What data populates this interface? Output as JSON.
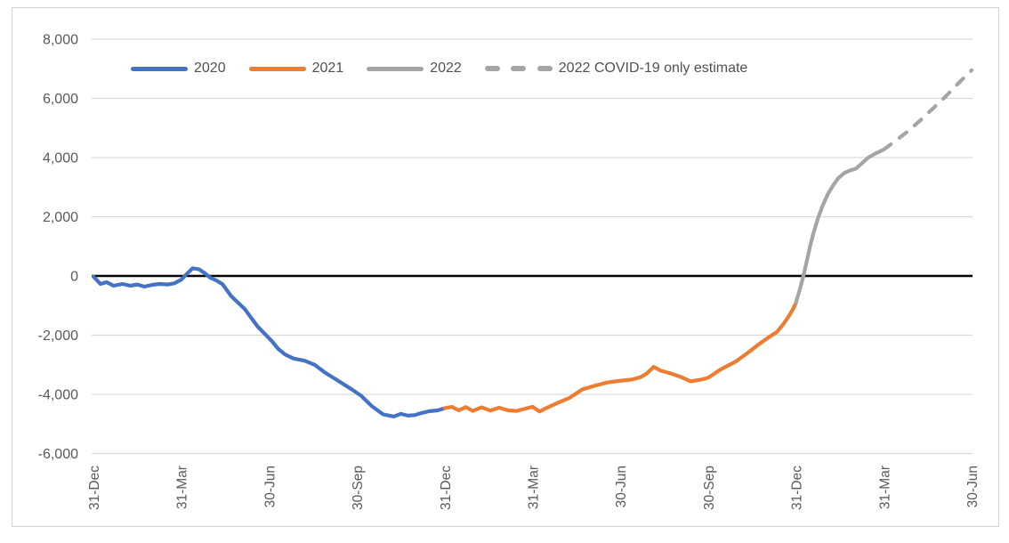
{
  "chart_data": {
    "type": "line",
    "title": "",
    "xlabel": "",
    "ylabel": "",
    "ylim": [
      -6000,
      8000
    ],
    "y_tick_step": 2000,
    "grid": "horizontal",
    "legend_position": "top",
    "x_unit": "quarters since 31-Dec-2019, weekly data",
    "x_tick_labels": [
      "31-Dec",
      "31-Mar",
      "30-Jun",
      "30-Sep",
      "31-Dec",
      "31-Mar",
      "30-Jun",
      "30-Sep",
      "31-Dec",
      "31-Mar",
      "30-Jun"
    ],
    "y_tick_labels": [
      "8,000",
      "6,000",
      "4,000",
      "2,000",
      "0",
      "-2,000",
      "-4,000",
      "-6,000"
    ],
    "y_tick_values": [
      8000,
      6000,
      4000,
      2000,
      0,
      -2000,
      -4000,
      -6000
    ],
    "zero_line_color": "#000000",
    "gridline_color": "#d9d9d9",
    "axis_text_color": "#595959",
    "series": [
      {
        "name": "2020",
        "color": "#4472C4",
        "dashed": false,
        "points": [
          [
            0,
            -20
          ],
          [
            0.08,
            -270
          ],
          [
            0.15,
            -210
          ],
          [
            0.23,
            -330
          ],
          [
            0.33,
            -270
          ],
          [
            0.42,
            -330
          ],
          [
            0.5,
            -290
          ],
          [
            0.58,
            -360
          ],
          [
            0.67,
            -300
          ],
          [
            0.75,
            -270
          ],
          [
            0.85,
            -290
          ],
          [
            0.92,
            -250
          ],
          [
            1.0,
            -130
          ],
          [
            1.06,
            60
          ],
          [
            1.13,
            260
          ],
          [
            1.2,
            230
          ],
          [
            1.27,
            90
          ],
          [
            1.33,
            -60
          ],
          [
            1.4,
            -150
          ],
          [
            1.47,
            -280
          ],
          [
            1.57,
            -690
          ],
          [
            1.72,
            -1110
          ],
          [
            1.87,
            -1710
          ],
          [
            2.03,
            -2200
          ],
          [
            2.1,
            -2450
          ],
          [
            2.18,
            -2650
          ],
          [
            2.28,
            -2790
          ],
          [
            2.4,
            -2860
          ],
          [
            2.52,
            -3000
          ],
          [
            2.63,
            -3250
          ],
          [
            2.79,
            -3550
          ],
          [
            2.94,
            -3830
          ],
          [
            3.05,
            -4050
          ],
          [
            3.17,
            -4400
          ],
          [
            3.3,
            -4680
          ],
          [
            3.42,
            -4750
          ],
          [
            3.5,
            -4660
          ],
          [
            3.58,
            -4720
          ],
          [
            3.66,
            -4700
          ],
          [
            3.74,
            -4630
          ],
          [
            3.82,
            -4570
          ],
          [
            3.92,
            -4540
          ],
          [
            4.0,
            -4470
          ]
        ]
      },
      {
        "name": "2021",
        "color": "#ED7D31",
        "dashed": false,
        "points": [
          [
            4.0,
            -4470
          ],
          [
            4.08,
            -4420
          ],
          [
            4.16,
            -4540
          ],
          [
            4.24,
            -4430
          ],
          [
            4.32,
            -4560
          ],
          [
            4.42,
            -4440
          ],
          [
            4.52,
            -4550
          ],
          [
            4.62,
            -4450
          ],
          [
            4.72,
            -4540
          ],
          [
            4.82,
            -4560
          ],
          [
            4.92,
            -4480
          ],
          [
            5.0,
            -4420
          ],
          [
            5.08,
            -4580
          ],
          [
            5.16,
            -4460
          ],
          [
            5.27,
            -4310
          ],
          [
            5.42,
            -4120
          ],
          [
            5.57,
            -3830
          ],
          [
            5.72,
            -3700
          ],
          [
            5.85,
            -3600
          ],
          [
            5.98,
            -3550
          ],
          [
            6.13,
            -3500
          ],
          [
            6.23,
            -3420
          ],
          [
            6.3,
            -3300
          ],
          [
            6.38,
            -3070
          ],
          [
            6.46,
            -3200
          ],
          [
            6.56,
            -3280
          ],
          [
            6.68,
            -3400
          ],
          [
            6.8,
            -3560
          ],
          [
            6.92,
            -3500
          ],
          [
            7.0,
            -3440
          ],
          [
            7.14,
            -3160
          ],
          [
            7.31,
            -2900
          ],
          [
            7.45,
            -2600
          ],
          [
            7.6,
            -2260
          ],
          [
            7.7,
            -2050
          ],
          [
            7.78,
            -1900
          ],
          [
            7.85,
            -1650
          ],
          [
            7.92,
            -1350
          ],
          [
            7.97,
            -1100
          ],
          [
            8.0,
            -900
          ]
        ]
      },
      {
        "name": "2022",
        "color": "#A5A5A5",
        "dashed": false,
        "points": [
          [
            8.0,
            -900
          ],
          [
            8.04,
            -500
          ],
          [
            8.08,
            -50
          ],
          [
            8.12,
            450
          ],
          [
            8.16,
            1000
          ],
          [
            8.2,
            1450
          ],
          [
            8.25,
            1950
          ],
          [
            8.3,
            2350
          ],
          [
            8.36,
            2750
          ],
          [
            8.42,
            3050
          ],
          [
            8.48,
            3300
          ],
          [
            8.55,
            3480
          ],
          [
            8.62,
            3570
          ],
          [
            8.68,
            3620
          ],
          [
            8.75,
            3800
          ],
          [
            8.82,
            3990
          ],
          [
            8.9,
            4130
          ],
          [
            9.0,
            4270
          ]
        ]
      },
      {
        "name": "2022 COVID-19 only estimate",
        "color": "#A5A5A5",
        "dashed": true,
        "points": [
          [
            9.0,
            4270
          ],
          [
            9.14,
            4580
          ],
          [
            9.28,
            4900
          ],
          [
            9.42,
            5270
          ],
          [
            9.56,
            5660
          ],
          [
            9.7,
            6050
          ],
          [
            9.84,
            6480
          ],
          [
            10.0,
            6950
          ]
        ]
      }
    ]
  },
  "legend": {
    "items": [
      {
        "label": "2020",
        "color": "#4472C4",
        "dashed": false
      },
      {
        "label": "2021",
        "color": "#ED7D31",
        "dashed": false
      },
      {
        "label": "2022",
        "color": "#A5A5A5",
        "dashed": false
      },
      {
        "label": "2022 COVID-19 only estimate",
        "color": "#A5A5A5",
        "dashed": true
      }
    ]
  }
}
